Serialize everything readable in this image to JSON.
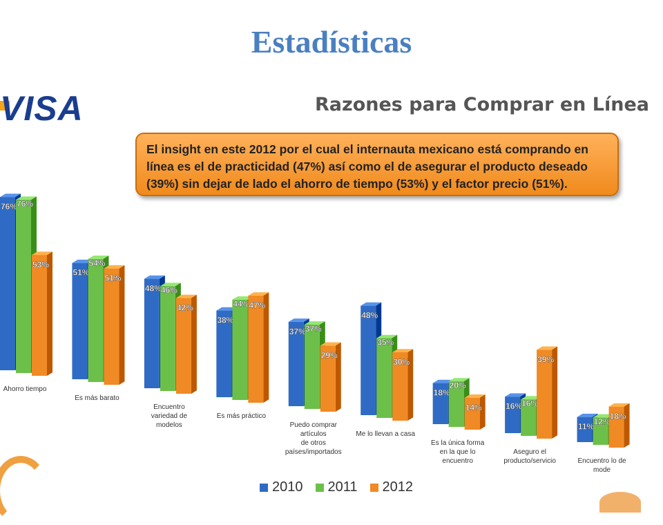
{
  "slide": {
    "title": "Estadísticas"
  },
  "brand": {
    "logo_text": "VISA"
  },
  "chart_title": "Razones para Comprar en Línea",
  "insight": "El insight  en este 2012 por el cual el internauta mexicano está comprando en línea es el de practicidad (47%) así como el de asegurar el producto deseado (39%) sin dejar de lado el ahorro de tiempo (53%) y el factor precio (51%).",
  "colors": {
    "2010": "#2f6bc4",
    "2011": "#6cc04a",
    "2012": "#f08a24",
    "title": "#4a7fc1"
  },
  "chart_data": {
    "type": "bar",
    "categories": [
      [
        "Ahorro tiempo"
      ],
      [
        "Es más barato"
      ],
      [
        "Encuentro",
        "variedad de",
        "modelos"
      ],
      [
        "Es más práctico"
      ],
      [
        "Puedo comprar",
        "artículos",
        "de otros",
        "países/importados"
      ],
      [
        "Me lo llevan a casa"
      ],
      [
        "Es la única forma",
        "en la que lo",
        "encuentro"
      ],
      [
        "Aseguro el",
        "producto/servicio"
      ],
      [
        "Encuentro lo de",
        "mode"
      ]
    ],
    "series": [
      {
        "name": "2010",
        "values": [
          76,
          51,
          48,
          38,
          37,
          48,
          18,
          16,
          11
        ]
      },
      {
        "name": "2011",
        "values": [
          76,
          54,
          46,
          44,
          37,
          35,
          20,
          16,
          12
        ]
      },
      {
        "name": "2012",
        "values": [
          53,
          51,
          42,
          47,
          29,
          30,
          14,
          39,
          18
        ]
      }
    ],
    "value_suffix": "%",
    "legend_position": "bottom"
  }
}
